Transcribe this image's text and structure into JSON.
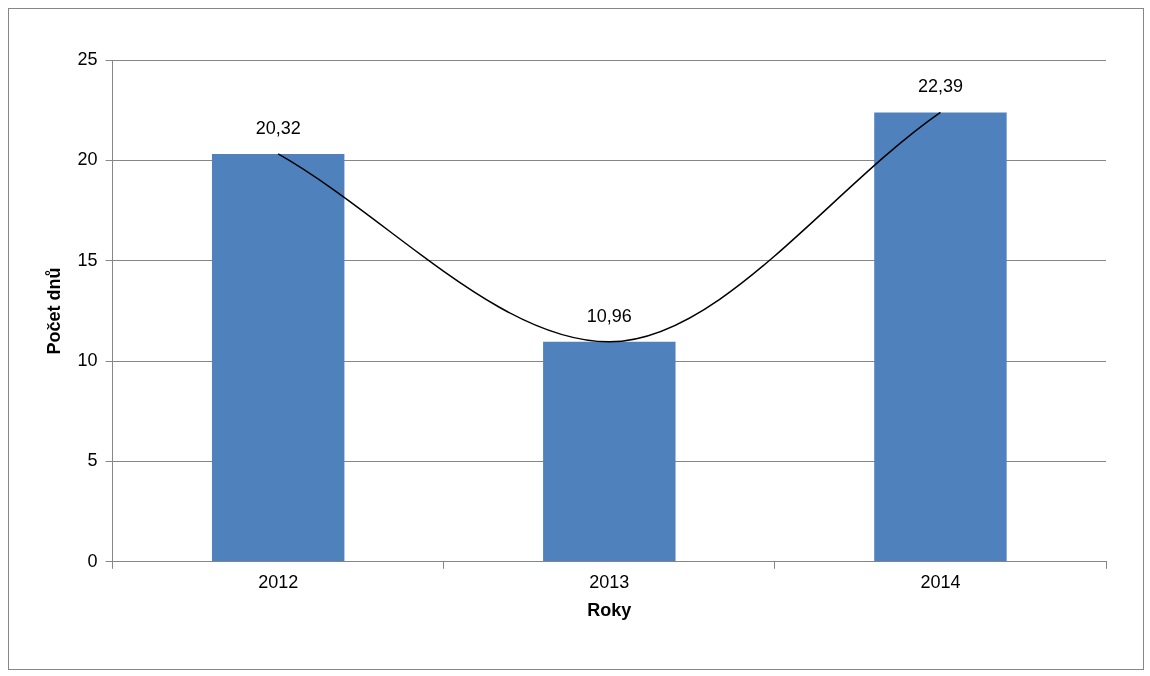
{
  "chart_data": {
    "type": "bar",
    "xlabel": "Roky",
    "ylabel": "Počet dnů",
    "categories": [
      "2012",
      "2013",
      "2014"
    ],
    "series": [
      {
        "color": "#4f81bd",
        "values": [
          20.32,
          10.96,
          22.39
        ],
        "value_labels": [
          "20,32",
          "10,96",
          "22,39"
        ]
      },
      {
        "type": "line",
        "color": "#000000",
        "values": [
          20.32,
          10.96,
          22.39
        ]
      }
    ],
    "ylim": [
      0,
      25
    ],
    "yticks": [
      0,
      5,
      10,
      15,
      20,
      25
    ],
    "grid": "y",
    "legend": false
  }
}
